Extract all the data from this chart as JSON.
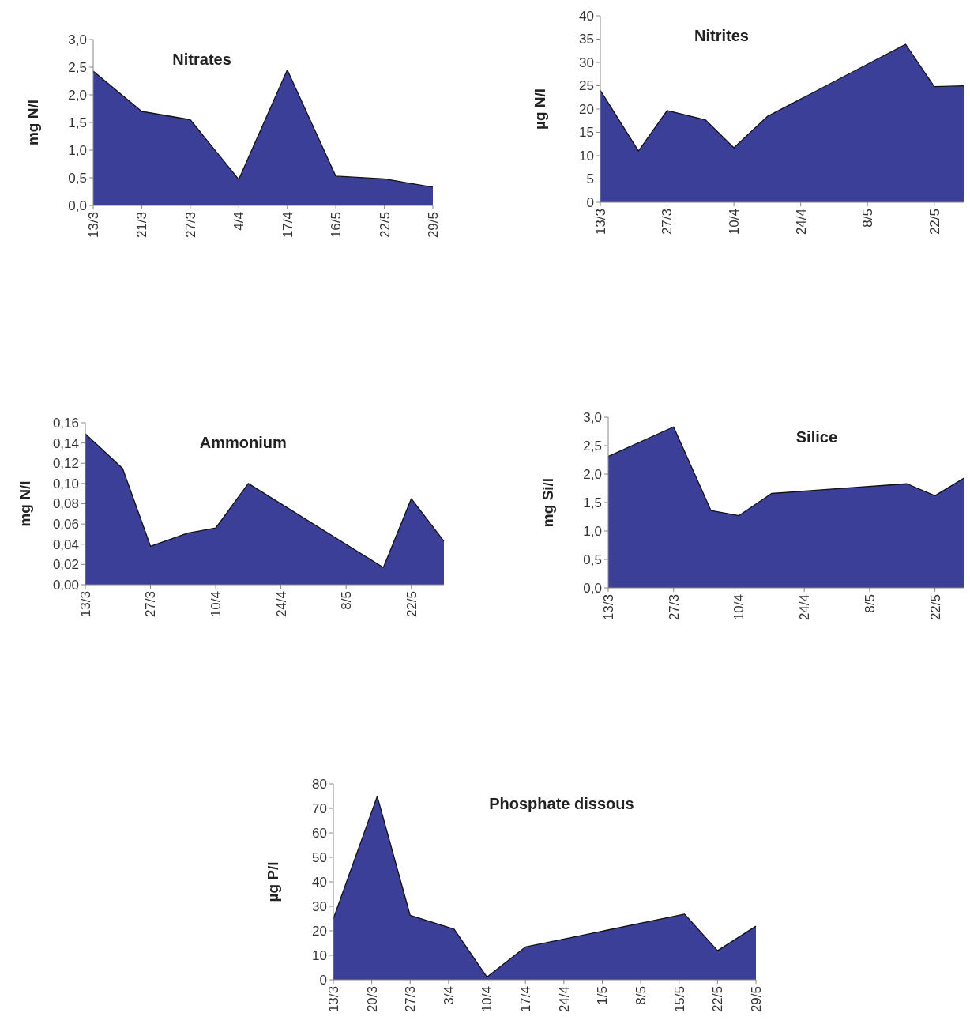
{
  "chart_data": [
    {
      "type": "area",
      "title": "Nitrates",
      "ylabel": "mg N/l",
      "categories": [
        "13/3",
        "21/3",
        "27/3",
        "4/4",
        "17/4",
        "16/5",
        "22/5",
        "29/5"
      ],
      "values": [
        2.43,
        1.7,
        1.55,
        0.47,
        2.45,
        0.53,
        0.48,
        0.33
      ],
      "color": "#3b3f98",
      "ylim": [
        0,
        3
      ],
      "yticks": [
        {
          "value": 0,
          "label": "0,0"
        },
        {
          "value": 0.5,
          "label": "0,5"
        },
        {
          "value": 1,
          "label": "1,0"
        },
        {
          "value": 1.5,
          "label": "1,5"
        },
        {
          "value": 2,
          "label": "2,0"
        },
        {
          "value": 2.5,
          "label": "2,5"
        },
        {
          "value": 3,
          "label": "3,0"
        }
      ],
      "grid": false
    },
    {
      "type": "area",
      "title": "Nitrites",
      "ylabel": "µg N/l",
      "x": [
        "--03-13",
        "--03-21",
        "--03-27",
        "--04-04",
        "--04-10",
        "--04-17",
        "--05-16",
        "--05-22",
        "--05-29"
      ],
      "values": [
        24,
        11,
        19.7,
        17.7,
        11.7,
        18.4,
        33.9,
        24.8,
        25
      ],
      "color": "#3b3f98",
      "xlim": [
        "--03-13",
        "--05-29"
      ],
      "xticks": [
        {
          "value": "--03-13",
          "label": "13/3"
        },
        {
          "value": "--03-27",
          "label": "27/3"
        },
        {
          "value": "--04-10",
          "label": "10/4"
        },
        {
          "value": "--04-24",
          "label": "24/4"
        },
        {
          "value": "--05-08",
          "label": "8/5"
        },
        {
          "value": "--05-22",
          "label": "22/5"
        }
      ],
      "ylim": [
        0,
        40
      ],
      "yticks": [
        0,
        5,
        10,
        15,
        20,
        25,
        30,
        35,
        40
      ],
      "grid": false
    },
    {
      "type": "area",
      "title": "Ammonium",
      "ylabel": "mg N/l",
      "x": [
        "--03-13",
        "--03-21",
        "--03-27",
        "--04-04",
        "--04-10",
        "--04-17",
        "--05-16",
        "--05-22",
        "--05-29"
      ],
      "values": [
        0.149,
        0.115,
        0.038,
        0.051,
        0.056,
        0.1,
        0.017,
        0.085,
        0.043
      ],
      "color": "#3b3f98",
      "xlim": [
        "--03-13",
        "--05-29"
      ],
      "xticks": [
        {
          "value": "--03-13",
          "label": "13/3"
        },
        {
          "value": "--03-27",
          "label": "27/3"
        },
        {
          "value": "--04-10",
          "label": "10/4"
        },
        {
          "value": "--04-24",
          "label": "24/4"
        },
        {
          "value": "--05-08",
          "label": "8/5"
        },
        {
          "value": "--05-22",
          "label": "22/5"
        }
      ],
      "ylim": [
        0,
        0.16
      ],
      "yticks": [
        {
          "value": 0,
          "label": "0,00"
        },
        {
          "value": 0.02,
          "label": "0,02"
        },
        {
          "value": 0.04,
          "label": "0,04"
        },
        {
          "value": 0.06,
          "label": "0,06"
        },
        {
          "value": 0.08,
          "label": "0,08"
        },
        {
          "value": 0.1,
          "label": "0,10"
        },
        {
          "value": 0.12,
          "label": "0,12"
        },
        {
          "value": 0.14,
          "label": "0,14"
        },
        {
          "value": 0.16,
          "label": "0,16"
        }
      ],
      "grid": false
    },
    {
      "type": "area",
      "title": "Silice",
      "ylabel": "mg Si/l",
      "x": [
        "--03-13",
        "--03-27",
        "--04-04",
        "--04-10",
        "--04-17",
        "--05-16",
        "--05-22",
        "--05-29"
      ],
      "values": [
        2.31,
        2.83,
        1.36,
        1.27,
        1.66,
        1.83,
        1.62,
        1.97
      ],
      "color": "#3b3f98",
      "xlim": [
        "--03-13",
        "--05-29"
      ],
      "xticks": [
        {
          "value": "--03-13",
          "label": "13/3"
        },
        {
          "value": "--03-27",
          "label": "27/3"
        },
        {
          "value": "--04-10",
          "label": "10/4"
        },
        {
          "value": "--04-24",
          "label": "24/4"
        },
        {
          "value": "--05-08",
          "label": "8/5"
        },
        {
          "value": "--05-22",
          "label": "22/5"
        }
      ],
      "ylim": [
        0,
        3
      ],
      "yticks": [
        {
          "value": 0,
          "label": "0,0"
        },
        {
          "value": 0.5,
          "label": "0,5"
        },
        {
          "value": 1,
          "label": "1,0"
        },
        {
          "value": 1.5,
          "label": "1,5"
        },
        {
          "value": 2,
          "label": "2,0"
        },
        {
          "value": 2.5,
          "label": "2,5"
        },
        {
          "value": 3,
          "label": "3,0"
        }
      ],
      "grid": false
    },
    {
      "type": "area",
      "title": "Phosphate dissous",
      "ylabel": "µg P/l",
      "x": [
        "--03-13",
        "--03-21",
        "--03-27",
        "--04-04",
        "--04-10",
        "--04-17",
        "--05-16",
        "--05-22",
        "--05-29"
      ],
      "values": [
        24.9,
        74.9,
        26.3,
        20.7,
        1.1,
        13.4,
        26.8,
        11.9,
        21.9
      ],
      "color": "#3b3f98",
      "xlim": [
        "--03-13",
        "--05-29"
      ],
      "xticks": [
        {
          "value": "--03-13",
          "label": "13/3"
        },
        {
          "value": "--03-20",
          "label": "20/3"
        },
        {
          "value": "--03-27",
          "label": "27/3"
        },
        {
          "value": "--04-03",
          "label": "3/4"
        },
        {
          "value": "--04-10",
          "label": "10/4"
        },
        {
          "value": "--04-17",
          "label": "17/4"
        },
        {
          "value": "--04-24",
          "label": "24/4"
        },
        {
          "value": "--05-01",
          "label": "1/5"
        },
        {
          "value": "--05-08",
          "label": "8/5"
        },
        {
          "value": "--05-15",
          "label": "15/5"
        },
        {
          "value": "--05-22",
          "label": "22/5"
        },
        {
          "value": "--05-29",
          "label": "29/5"
        }
      ],
      "ylim": [
        0,
        80
      ],
      "yticks": [
        0,
        10,
        20,
        30,
        40,
        50,
        60,
        70,
        80
      ],
      "grid": false
    }
  ]
}
